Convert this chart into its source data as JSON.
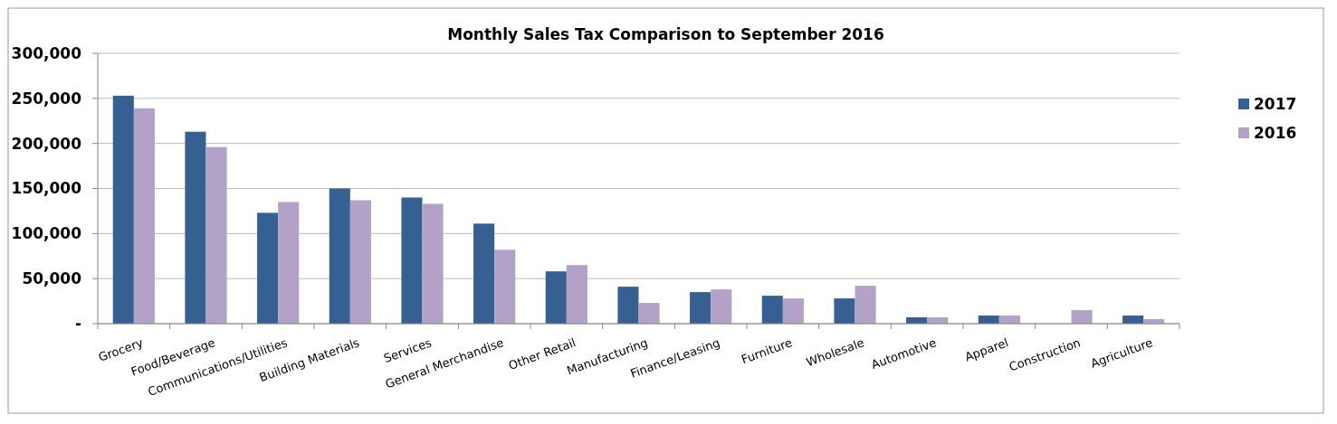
{
  "chart_data": {
    "type": "bar",
    "title": "Monthly Sales Tax Comparison to September 2016",
    "categories": [
      "Grocery",
      "Food/Beverage",
      "Communications/Utilities",
      "Building Materials",
      "Services",
      "General Merchandise",
      "Other Retail",
      "Manufacturing",
      "Finance/Leasing",
      "Furniture",
      "Wholesale",
      "Automotive",
      "Apparel",
      "Construction",
      "Agriculture"
    ],
    "series": [
      {
        "name": "2017",
        "color": "#366092",
        "values": [
          253000,
          213000,
          123000,
          150000,
          140000,
          111000,
          58000,
          41000,
          35000,
          31000,
          28000,
          7000,
          9000,
          null,
          9000
        ]
      },
      {
        "name": "2016",
        "color": "#b3a2c7",
        "values": [
          239000,
          196000,
          135000,
          137000,
          133000,
          82000,
          65000,
          23000,
          38000,
          28000,
          42000,
          7000,
          9000,
          15000,
          5000
        ]
      }
    ],
    "ylim": [
      0,
      300000
    ],
    "yticks": [
      {
        "value": 0,
        "label": "-"
      },
      {
        "value": 50000,
        "label": "50,000"
      },
      {
        "value": 100000,
        "label": "100,000"
      },
      {
        "value": 150000,
        "label": "150,000"
      },
      {
        "value": 200000,
        "label": "200,000"
      },
      {
        "value": 250000,
        "label": "250,000"
      },
      {
        "value": 300000,
        "label": "300,000"
      }
    ],
    "grid": "y",
    "legend": "right"
  }
}
